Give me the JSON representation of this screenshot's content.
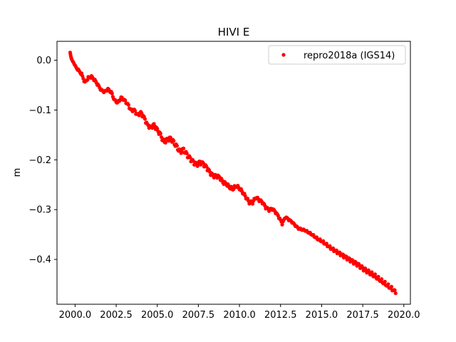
{
  "chart_data": {
    "type": "scatter",
    "title": "HIVI E",
    "xlabel": "",
    "ylabel": "m",
    "xlim": [
      1998.9,
      2020.4
    ],
    "ylim": [
      -0.49,
      0.038
    ],
    "xticks": [
      2000.0,
      2002.5,
      2005.0,
      2007.5,
      2010.0,
      2012.5,
      2015.0,
      2017.5,
      2020.0
    ],
    "xtick_labels": [
      "2000.0",
      "2002.5",
      "2005.0",
      "2007.5",
      "2010.0",
      "2012.5",
      "2015.0",
      "2017.5",
      "2020.0"
    ],
    "yticks": [
      0.0,
      -0.1,
      -0.2,
      -0.3,
      -0.4
    ],
    "ytick_labels": [
      "0.0",
      "−0.1",
      "−0.2",
      "−0.3",
      "−0.4"
    ],
    "grid": false,
    "legend": {
      "position": "top-right"
    },
    "series": [
      {
        "name": "repro2018a (IGS14)",
        "color": "#ff0000",
        "marker": "dot",
        "x": [
          1999.7,
          1999.75,
          1999.8,
          1999.9,
          2000.0,
          2000.2,
          2000.4,
          2000.6,
          2000.8,
          2001.0,
          2001.2,
          2001.4,
          2001.6,
          2001.8,
          2002.0,
          2002.2,
          2002.4,
          2002.6,
          2002.8,
          2003.0,
          2003.2,
          2003.4,
          2003.6,
          2003.8,
          2004.0,
          2004.2,
          2004.4,
          2004.6,
          2004.8,
          2005.0,
          2005.2,
          2005.4,
          2005.6,
          2005.8,
          2006.0,
          2006.2,
          2006.4,
          2006.6,
          2006.8,
          2007.0,
          2007.2,
          2007.4,
          2007.6,
          2007.8,
          2008.0,
          2008.2,
          2008.4,
          2008.6,
          2008.8,
          2009.0,
          2009.2,
          2009.4,
          2009.6,
          2009.8,
          2010.0,
          2010.2,
          2010.4,
          2010.6,
          2010.8,
          2011.0,
          2011.2,
          2011.4,
          2011.6,
          2011.8,
          2012.0,
          2012.2,
          2012.4,
          2012.6,
          2012.8,
          2013.0,
          2013.2,
          2013.4,
          2013.6,
          2013.8,
          2014.0,
          2014.2,
          2014.4,
          2014.6,
          2014.8,
          2015.0,
          2015.2,
          2015.4,
          2015.6,
          2015.8,
          2016.0,
          2016.2,
          2016.4,
          2016.6,
          2016.8,
          2017.0,
          2017.2,
          2017.4,
          2017.6,
          2017.8,
          2018.0,
          2018.2,
          2018.4,
          2018.6,
          2018.8,
          2019.0,
          2019.2,
          2019.4,
          2019.5
        ],
        "y": [
          0.014,
          0.005,
          0.0,
          -0.006,
          -0.012,
          -0.02,
          -0.028,
          -0.045,
          -0.035,
          -0.033,
          -0.04,
          -0.05,
          -0.06,
          -0.063,
          -0.058,
          -0.064,
          -0.08,
          -0.085,
          -0.075,
          -0.08,
          -0.088,
          -0.1,
          -0.1,
          -0.11,
          -0.105,
          -0.115,
          -0.13,
          -0.135,
          -0.13,
          -0.14,
          -0.15,
          -0.165,
          -0.16,
          -0.158,
          -0.165,
          -0.175,
          -0.185,
          -0.18,
          -0.19,
          -0.198,
          -0.205,
          -0.21,
          -0.205,
          -0.208,
          -0.215,
          -0.225,
          -0.232,
          -0.232,
          -0.235,
          -0.245,
          -0.248,
          -0.255,
          -0.258,
          -0.252,
          -0.257,
          -0.265,
          -0.275,
          -0.285,
          -0.285,
          -0.275,
          -0.28,
          -0.285,
          -0.295,
          -0.3,
          -0.298,
          -0.305,
          -0.315,
          -0.328,
          -0.315,
          -0.32,
          -0.325,
          -0.332,
          -0.338,
          -0.34,
          -0.342,
          -0.346,
          -0.35,
          -0.355,
          -0.36,
          -0.363,
          -0.368,
          -0.373,
          -0.378,
          -0.382,
          -0.386,
          -0.39,
          -0.394,
          -0.398,
          -0.402,
          -0.406,
          -0.41,
          -0.415,
          -0.42,
          -0.424,
          -0.428,
          -0.432,
          -0.437,
          -0.442,
          -0.447,
          -0.452,
          -0.457,
          -0.462,
          -0.468
        ]
      }
    ]
  }
}
